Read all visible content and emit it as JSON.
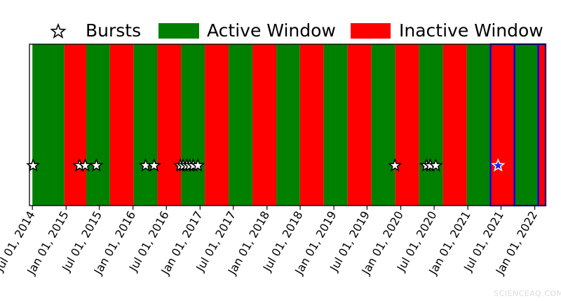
{
  "chart_data": {
    "type": "timeline",
    "x_axis": {
      "type": "date",
      "range": [
        "2014-06-15",
        "2022-03-01"
      ],
      "ticks": [
        {
          "date": "2014-07-01",
          "label": "Jul 01, 2014"
        },
        {
          "date": "2015-01-01",
          "label": "Jan 01, 2015"
        },
        {
          "date": "2015-07-01",
          "label": "Jul 01, 2015"
        },
        {
          "date": "2016-01-01",
          "label": "Jan 01, 2016"
        },
        {
          "date": "2016-07-01",
          "label": "Jul 01, 2016"
        },
        {
          "date": "2017-01-01",
          "label": "Jan 01, 2017"
        },
        {
          "date": "2017-07-01",
          "label": "Jul 01, 2017"
        },
        {
          "date": "2018-01-01",
          "label": "Jan 01, 2018"
        },
        {
          "date": "2018-07-01",
          "label": "Jul 01, 2018"
        },
        {
          "date": "2019-01-01",
          "label": "Jan 01, 2019"
        },
        {
          "date": "2019-07-01",
          "label": "Jul 01, 2019"
        },
        {
          "date": "2020-01-01",
          "label": "Jan 01, 2020"
        },
        {
          "date": "2020-07-01",
          "label": "Jul 01, 2020"
        },
        {
          "date": "2021-01-01",
          "label": "Jan 01, 2021"
        },
        {
          "date": "2021-07-01",
          "label": "Jul 01, 2021"
        },
        {
          "date": "2022-01-01",
          "label": "Jan 01, 2022"
        }
      ]
    },
    "legend": {
      "placement": "top",
      "entries": [
        {
          "label": "Bursts",
          "marker": "star"
        },
        {
          "label": "Active Window",
          "color": "#008000"
        },
        {
          "label": "Inactive Window",
          "color": "#ff0000"
        }
      ]
    },
    "windows": [
      {
        "start": "2014-07-01",
        "end": "2014-12-22",
        "state": "active"
      },
      {
        "start": "2014-12-22",
        "end": "2015-04-21",
        "state": "inactive"
      },
      {
        "start": "2015-04-21",
        "end": "2015-08-28",
        "state": "active"
      },
      {
        "start": "2015-08-28",
        "end": "2016-01-05",
        "state": "inactive"
      },
      {
        "start": "2016-01-05",
        "end": "2016-05-13",
        "state": "active"
      },
      {
        "start": "2016-05-13",
        "end": "2016-09-20",
        "state": "inactive"
      },
      {
        "start": "2016-09-20",
        "end": "2017-01-27",
        "state": "active"
      },
      {
        "start": "2017-01-27",
        "end": "2017-06-06",
        "state": "inactive"
      },
      {
        "start": "2017-06-06",
        "end": "2017-10-14",
        "state": "active"
      },
      {
        "start": "2017-10-14",
        "end": "2018-02-21",
        "state": "inactive"
      },
      {
        "start": "2018-02-21",
        "end": "2018-06-30",
        "state": "active"
      },
      {
        "start": "2018-06-30",
        "end": "2018-11-07",
        "state": "inactive"
      },
      {
        "start": "2018-11-07",
        "end": "2019-03-17",
        "state": "active"
      },
      {
        "start": "2019-03-17",
        "end": "2019-07-25",
        "state": "inactive"
      },
      {
        "start": "2019-07-25",
        "end": "2019-12-02",
        "state": "active"
      },
      {
        "start": "2019-12-02",
        "end": "2020-04-10",
        "state": "inactive"
      },
      {
        "start": "2020-04-10",
        "end": "2020-08-18",
        "state": "active"
      },
      {
        "start": "2020-08-18",
        "end": "2020-12-26",
        "state": "inactive"
      },
      {
        "start": "2020-12-26",
        "end": "2021-05-05",
        "state": "active"
      },
      {
        "start": "2021-05-05",
        "end": "2021-09-12",
        "state": "inactive",
        "outlined": true
      },
      {
        "start": "2021-09-12",
        "end": "2022-01-20",
        "state": "active",
        "outlined": true
      },
      {
        "start": "2022-01-20",
        "end": "2022-05-30",
        "state": "inactive",
        "outlined": true
      }
    ],
    "bursts": [
      {
        "date": "2014-07-05"
      },
      {
        "date": "2015-03-15"
      },
      {
        "date": "2015-04-15"
      },
      {
        "date": "2015-06-15"
      },
      {
        "date": "2016-03-10"
      },
      {
        "date": "2016-04-25"
      },
      {
        "date": "2016-09-15"
      },
      {
        "date": "2016-10-01"
      },
      {
        "date": "2016-10-20"
      },
      {
        "date": "2016-11-05"
      },
      {
        "date": "2016-11-25"
      },
      {
        "date": "2016-12-20"
      },
      {
        "date": "2019-11-30"
      },
      {
        "date": "2020-05-20"
      },
      {
        "date": "2020-06-10"
      },
      {
        "date": "2020-07-10"
      },
      {
        "date": "2021-06-15",
        "highlighted": true
      }
    ],
    "colors": {
      "active": "#008000",
      "inactive": "#ff0000",
      "outline": "#0000ff",
      "highlighted_burst": "#1e1eff"
    }
  },
  "watermark": "SCIENCEAQ.COM"
}
